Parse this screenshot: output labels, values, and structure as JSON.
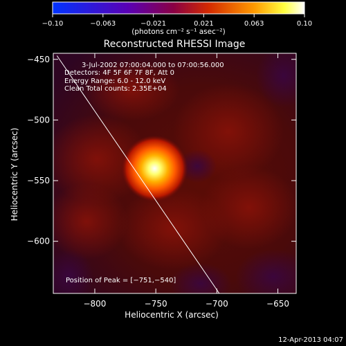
{
  "chart_data": {
    "type": "heatmap",
    "title": "Reconstructed RHESSI Image",
    "xlabel": "Heliocentric X (arcsec)",
    "ylabel": "Heliocentric Y (arcsec)",
    "xlim": [
      -834,
      -635
    ],
    "ylim": [
      -643,
      -445
    ],
    "x_ticks": [
      -800,
      -750,
      -700,
      -650
    ],
    "y_ticks": [
      -450,
      -500,
      -550,
      -600
    ],
    "x_tick_labels": [
      "−800",
      "−750",
      "−700",
      "−650"
    ],
    "y_tick_labels": [
      "−450",
      "−500",
      "−550",
      "−600"
    ],
    "colorbar": {
      "min": -0.1,
      "max": 0.1,
      "tick_labels": [
        "−0.10",
        "−0.063",
        "−0.021",
        "0.021",
        "0.063",
        "0.10"
      ],
      "unit_label": "(photons cm⁻² s⁻¹ asec⁻²)",
      "colors": [
        "#0033ff",
        "#5a00b4",
        "#8a0044",
        "#d42a00",
        "#ff9a00",
        "#ffff40",
        "#ffffff"
      ]
    },
    "peak": {
      "x": -751,
      "y": -540
    },
    "limb_line": [
      [
        -831,
        -447
      ],
      [
        -698,
        -643
      ]
    ],
    "annotations": {
      "time": "3-Jul-2002 07:00:04.000 to 07:00:56.000",
      "detectors": "Detectors: 4F 5F 6F 7F 8F, Att 0",
      "energy": "Energy Range: 6.0 - 12.0 keV",
      "clean": "Clean    Total counts: 2.35E+04",
      "peak_label": "Position of Peak = [−751,−540]"
    },
    "date_stamp": "12-Apr-2013 04:07"
  }
}
